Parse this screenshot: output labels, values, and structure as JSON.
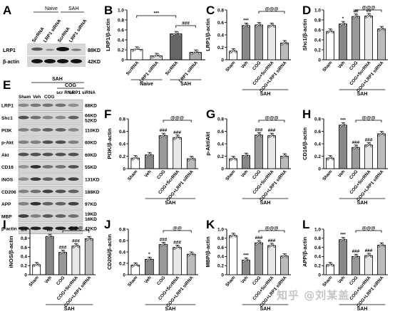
{
  "figure": {
    "panel_letters": [
      "A",
      "B",
      "C",
      "D",
      "E",
      "F",
      "G",
      "H",
      "I",
      "J",
      "K",
      "L"
    ],
    "panel_A": {
      "group_labels": [
        "Naive",
        "SAH"
      ],
      "lane_labels": [
        "ScrRNA",
        "LRP1 siRNA",
        "ScrRNA",
        "LRP1 siRNA"
      ],
      "rows": [
        {
          "protein": "LRP1",
          "kd": "88KD"
        },
        {
          "protein": "β-actin",
          "kd": "42KD"
        }
      ]
    },
    "panel_E": {
      "group_label": "SAH",
      "sub_group_label": "COG",
      "lane_labels": [
        "Sham",
        "Veh",
        "COG",
        "scr RNA",
        "LRP1 siRNA"
      ],
      "rows": [
        {
          "protein": "LRP1",
          "kd": "88KD"
        },
        {
          "protein": "Shc1",
          "kd": "66KD\n52KD"
        },
        {
          "protein": "PI3K",
          "kd": "110KD"
        },
        {
          "protein": "p-Akt",
          "kd": "60KD"
        },
        {
          "protein": "Akt",
          "kd": "60KD"
        },
        {
          "protein": "CD16",
          "kd": "55KD"
        },
        {
          "protein": "iNOS",
          "kd": "131KD"
        },
        {
          "protein": "CD206",
          "kd": "188KD"
        },
        {
          "protein": "APP",
          "kd": "97KD"
        },
        {
          "protein": "MBP",
          "kd": "19KD\n16KD"
        },
        {
          "protein": "β-actin",
          "kd": "42KD"
        }
      ]
    },
    "watermark": "知乎 @刘某盖"
  },
  "chart_data": [
    {
      "panel": "B",
      "type": "bar",
      "ylabel": "LRP1/β-actin",
      "ylim": [
        0,
        1
      ],
      "yticks": [
        0,
        0.2,
        0.4,
        0.6,
        0.8,
        1.0
      ],
      "categories": [
        "ScrRNA",
        "LRP1 siRNA",
        "ScrRNA",
        "LRP1 siRNA"
      ],
      "groups": [
        {
          "label": "Naive",
          "span": [
            0,
            1
          ]
        },
        {
          "label": "SAH",
          "span": [
            2,
            3
          ]
        }
      ],
      "values": [
        0.21,
        0.08,
        0.52,
        0.15
      ],
      "colors": [
        "#ffffff",
        "#e0e0e0",
        "#666666",
        "#aaaaaa"
      ],
      "brackets": [
        {
          "from": 0,
          "to": 2,
          "text": "***"
        },
        {
          "from": 2,
          "to": 3,
          "text": "###"
        }
      ]
    },
    {
      "panel": "C",
      "type": "bar",
      "ylabel": "LRP1/β-actin",
      "ylim": [
        0,
        0.8
      ],
      "yticks": [
        0,
        0.2,
        0.4,
        0.6,
        0.8
      ],
      "categories": [
        "Sham",
        "Veh",
        "COG",
        "COG+ScrRNA",
        "COG+LRP1 siRNA"
      ],
      "groups": [
        {
          "label": "SAH",
          "span": [
            1,
            4
          ]
        }
      ],
      "values": [
        0.14,
        0.55,
        0.56,
        0.55,
        0.27
      ],
      "colors": [
        "#ffffff",
        "#888888",
        "#999999",
        "#e8e8e8",
        "#bbbbbb"
      ],
      "marks": [
        "",
        "***",
        "",
        "",
        ""
      ],
      "brackets": [
        {
          "from": 2,
          "to": 4,
          "text": "@@@"
        }
      ]
    },
    {
      "panel": "D",
      "type": "bar",
      "ylabel": "Shc1/β-actin",
      "ylim": [
        0,
        1
      ],
      "yticks": [
        0,
        0.2,
        0.4,
        0.6,
        0.8,
        1.0
      ],
      "categories": [
        "Sham",
        "Veh",
        "COG",
        "COG+ScrRNA",
        "COG+LRP1 siRNA"
      ],
      "groups": [
        {
          "label": "SAH",
          "span": [
            1,
            4
          ]
        }
      ],
      "values": [
        0.57,
        0.72,
        0.87,
        0.88,
        0.62
      ],
      "colors": [
        "#ffffff",
        "#888888",
        "#999999",
        "#e8e8e8",
        "#bbbbbb"
      ],
      "marks": [
        "",
        "*",
        "##",
        "##",
        ""
      ],
      "brackets": [
        {
          "from": 2,
          "to": 4,
          "text": "@@@"
        }
      ]
    },
    {
      "panel": "F",
      "type": "bar",
      "ylabel": "PI3K/β-actin",
      "ylim": [
        0,
        0.8
      ],
      "yticks": [
        0,
        0.2,
        0.4,
        0.6,
        0.8
      ],
      "categories": [
        "Sham",
        "Veh",
        "COG",
        "COG+ScrRNA",
        "COG+LRP1 siRNA"
      ],
      "groups": [
        {
          "label": "SAH",
          "span": [
            1,
            4
          ]
        }
      ],
      "values": [
        0.17,
        0.22,
        0.53,
        0.5,
        0.16
      ],
      "colors": [
        "#ffffff",
        "#888888",
        "#999999",
        "#e8e8e8",
        "#bbbbbb"
      ],
      "marks": [
        "",
        "",
        "###",
        "###",
        ""
      ],
      "brackets": [
        {
          "from": 2,
          "to": 4,
          "text": "@@@"
        }
      ]
    },
    {
      "panel": "G",
      "type": "bar",
      "ylabel": "p-Akt/Akt",
      "ylim": [
        0,
        0.8
      ],
      "yticks": [
        0,
        0.2,
        0.4,
        0.6,
        0.8
      ],
      "categories": [
        "Sham",
        "Veh",
        "COG",
        "COG+ScrRNA",
        "COG+LRP1 siRNA"
      ],
      "groups": [
        {
          "label": "SAH",
          "span": [
            1,
            4
          ]
        }
      ],
      "values": [
        0.16,
        0.21,
        0.54,
        0.53,
        0.2
      ],
      "colors": [
        "#ffffff",
        "#888888",
        "#999999",
        "#e8e8e8",
        "#bbbbbb"
      ],
      "marks": [
        "",
        "",
        "###",
        "###",
        ""
      ],
      "brackets": [
        {
          "from": 2,
          "to": 4,
          "text": "@@@"
        }
      ]
    },
    {
      "panel": "H",
      "type": "bar",
      "ylabel": "CD16/β-actin",
      "ylim": [
        0,
        0.8
      ],
      "yticks": [
        0,
        0.2,
        0.4,
        0.6,
        0.8
      ],
      "categories": [
        "Sham",
        "Veh",
        "COG",
        "COG+ScrRNA",
        "COG+LRP1 siRNA"
      ],
      "groups": [
        {
          "label": "SAH",
          "span": [
            1,
            4
          ]
        }
      ],
      "values": [
        0.17,
        0.7,
        0.34,
        0.38,
        0.56
      ],
      "colors": [
        "#ffffff",
        "#888888",
        "#999999",
        "#e8e8e8",
        "#bbbbbb"
      ],
      "marks": [
        "",
        "***",
        "###",
        "###",
        ""
      ],
      "brackets": [
        {
          "from": 2,
          "to": 4,
          "text": "@@@"
        }
      ]
    },
    {
      "panel": "I",
      "type": "bar",
      "ylabel": "iNOS/β-actin",
      "ylim": [
        0,
        1
      ],
      "yticks": [
        0,
        0.2,
        0.4,
        0.6,
        0.8,
        1.0
      ],
      "categories": [
        "Sham",
        "Veh",
        "COG",
        "COG+ScrRNA",
        "COG+LRP1 siRNA"
      ],
      "groups": [
        {
          "label": "SAH",
          "span": [
            1,
            4
          ]
        }
      ],
      "values": [
        0.22,
        0.84,
        0.49,
        0.63,
        0.79
      ],
      "colors": [
        "#ffffff",
        "#888888",
        "#999999",
        "#e8e8e8",
        "#bbbbbb"
      ],
      "marks": [
        "",
        "***",
        "###",
        "###",
        ""
      ],
      "brackets": [
        {
          "from": 2,
          "to": 4,
          "text": "@@@"
        }
      ]
    },
    {
      "panel": "J",
      "type": "bar",
      "ylabel": "CD206/β-actin",
      "ylim": [
        0,
        0.8
      ],
      "yticks": [
        0,
        0.2,
        0.4,
        0.6,
        0.8
      ],
      "categories": [
        "Sham",
        "Veh",
        "COG",
        "COG+ScrRNA",
        "COG+LRP1 siRNA"
      ],
      "groups": [
        {
          "label": "SAH",
          "span": [
            1,
            4
          ]
        }
      ],
      "values": [
        0.17,
        0.27,
        0.53,
        0.48,
        0.36
      ],
      "colors": [
        "#ffffff",
        "#888888",
        "#999999",
        "#e8e8e8",
        "#bbbbbb"
      ],
      "marks": [
        "",
        "*",
        "###",
        "###",
        ""
      ],
      "brackets": [
        {
          "from": 2,
          "to": 4,
          "text": "@@"
        }
      ]
    },
    {
      "panel": "K",
      "type": "bar",
      "ylabel": "MBP/β-actin",
      "ylim": [
        0,
        1
      ],
      "yticks": [
        0,
        0.2,
        0.4,
        0.6,
        0.8,
        1.0
      ],
      "categories": [
        "Sham",
        "Veh",
        "COG",
        "COG+ScrRNA",
        "COG+LRP1 siRNA"
      ],
      "groups": [
        {
          "label": "SAH",
          "span": [
            1,
            4
          ]
        }
      ],
      "values": [
        0.86,
        0.32,
        0.7,
        0.64,
        0.41
      ],
      "colors": [
        "#ffffff",
        "#888888",
        "#999999",
        "#e8e8e8",
        "#bbbbbb"
      ],
      "marks": [
        "",
        "***",
        "###",
        "###",
        ""
      ],
      "brackets": [
        {
          "from": 2,
          "to": 4,
          "text": "@@@"
        }
      ]
    },
    {
      "panel": "L",
      "type": "bar",
      "ylabel": "APP/β-actin",
      "ylim": [
        0,
        1
      ],
      "yticks": [
        0,
        0.2,
        0.4,
        0.6,
        0.8,
        1.0
      ],
      "categories": [
        "Sham",
        "Veh",
        "COG",
        "COG+ScrRNA",
        "COG+LRP1 siRNA"
      ],
      "groups": [
        {
          "label": "SAH",
          "span": [
            1,
            4
          ]
        }
      ],
      "values": [
        0.22,
        0.77,
        0.4,
        0.42,
        0.65
      ],
      "colors": [
        "#ffffff",
        "#888888",
        "#999999",
        "#e8e8e8",
        "#bbbbbb"
      ],
      "marks": [
        "",
        "***",
        "###",
        "###",
        ""
      ],
      "brackets": [
        {
          "from": 2,
          "to": 4,
          "text": "@@@"
        }
      ]
    }
  ]
}
